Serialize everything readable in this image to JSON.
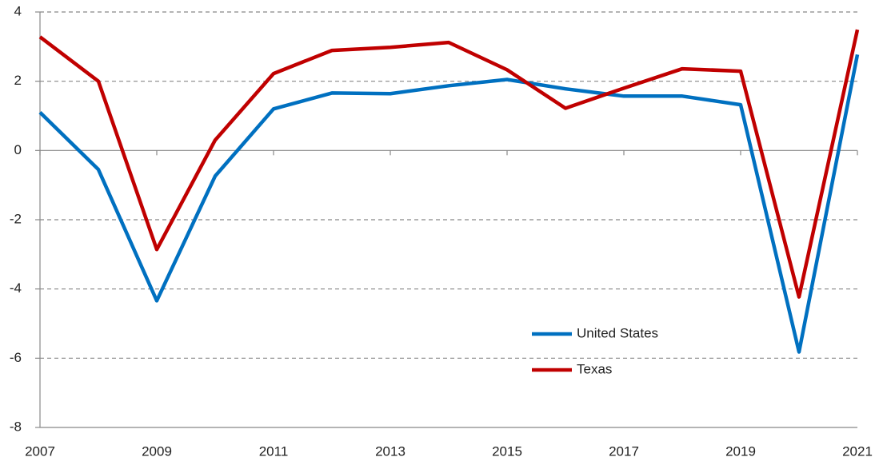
{
  "chart_data": {
    "type": "line",
    "x": [
      2007,
      2008,
      2009,
      2010,
      2011,
      2012,
      2013,
      2014,
      2015,
      2016,
      2017,
      2018,
      2019,
      2020,
      2021
    ],
    "series": [
      {
        "name": "United States",
        "color": "#0070c0",
        "values": [
          1.1,
          -0.55,
          -4.34,
          -0.74,
          1.2,
          1.66,
          1.64,
          1.87,
          2.05,
          1.78,
          1.57,
          1.57,
          1.32,
          -5.82,
          2.77
        ]
      },
      {
        "name": "Texas",
        "color": "#c00000",
        "values": [
          3.28,
          2.0,
          -2.86,
          0.3,
          2.22,
          2.89,
          2.98,
          3.12,
          2.33,
          1.22,
          1.8,
          2.36,
          2.29,
          -4.23,
          3.49
        ]
      }
    ],
    "xlim": [
      2007,
      2021
    ],
    "xticks": [
      2007,
      2009,
      2011,
      2013,
      2015,
      2017,
      2019,
      2021
    ],
    "ylim": [
      -8,
      4
    ],
    "yticks": [
      -8,
      -6,
      -4,
      -2,
      0,
      2,
      4
    ],
    "grid": true,
    "legend": "lower right"
  }
}
